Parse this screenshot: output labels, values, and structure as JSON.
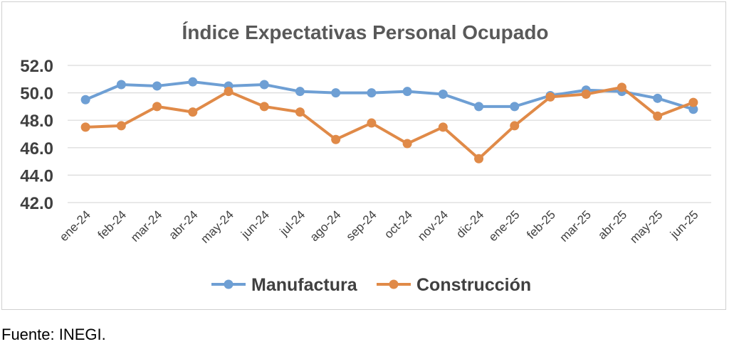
{
  "colors": {
    "manufactura": "#6e9fd4",
    "construccion": "#e08a48",
    "grid": "#d9d9d9",
    "title_text": "#595959",
    "axis_text": "#404040"
  },
  "chart_data": {
    "type": "line",
    "title": "Índice Expectativas Personal Ocupado",
    "xlabel": "",
    "ylabel": "",
    "categories": [
      "ene-24",
      "feb-24",
      "mar-24",
      "abr-24",
      "may-24",
      "jun-24",
      "jul-24",
      "ago-24",
      "sep-24",
      "oct-24",
      "nov-24",
      "dic-24",
      "ene-25",
      "feb-25",
      "mar-25",
      "abr-25",
      "may-25",
      "jun-25"
    ],
    "ylim": [
      42.0,
      52.0
    ],
    "yticks": [
      "42.0",
      "44.0",
      "46.0",
      "48.0",
      "50.0",
      "52.0"
    ],
    "grid": true,
    "legend_position": "bottom",
    "series": [
      {
        "name": "Manufactura",
        "values": [
          49.5,
          50.6,
          50.5,
          50.8,
          50.5,
          50.6,
          50.1,
          50.0,
          50.0,
          50.1,
          49.9,
          49.0,
          49.0,
          49.8,
          50.2,
          50.1,
          49.6,
          48.8
        ]
      },
      {
        "name": "Construcción",
        "values": [
          47.5,
          47.6,
          49.0,
          48.6,
          50.1,
          49.0,
          48.6,
          46.6,
          47.8,
          46.3,
          47.5,
          45.2,
          47.6,
          49.7,
          49.9,
          50.4,
          48.3,
          49.3
        ]
      }
    ]
  },
  "footer": {
    "source": "Fuente: INEGI."
  }
}
